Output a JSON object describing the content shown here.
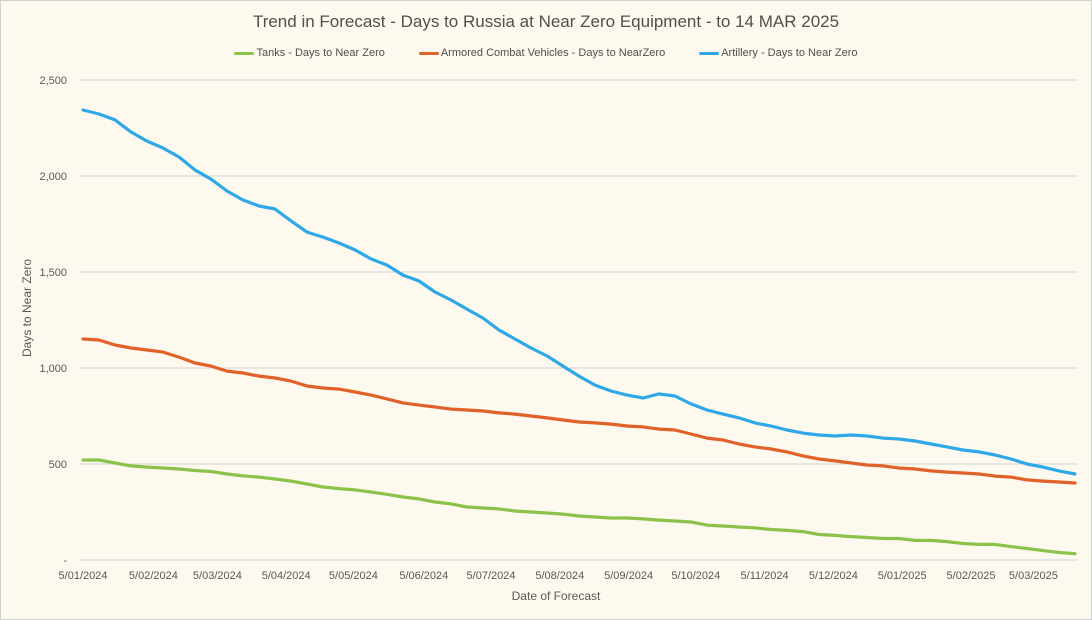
{
  "chart_data": {
    "type": "line",
    "title": "Trend in Forecast - Days to Russia at Near Zero Equipment - to 14 MAR 2025",
    "xlabel": "Date of Forecast",
    "ylabel": "Days to Near Zero",
    "ylim": [
      0,
      2500
    ],
    "yticks": [
      0,
      500,
      1000,
      1500,
      2000,
      2500
    ],
    "ytick_labels": [
      "-",
      "500",
      "1,000",
      "1,500",
      "2,000",
      "2,500"
    ],
    "xtick_labels": [
      "5/01/2024",
      "5/02/2024",
      "5/03/2024",
      "5/04/2024",
      "5/05/2024",
      "5/06/2024",
      "5/07/2024",
      "5/08/2024",
      "5/09/2024",
      "5/10/2024",
      "5/11/2024",
      "5/12/2024",
      "5/01/2025",
      "5/02/2025",
      "5/03/2025"
    ],
    "xtick_positions": [
      0,
      4.4,
      8.4,
      12.7,
      16.9,
      21.3,
      25.5,
      29.8,
      34.1,
      38.3,
      42.6,
      46.9,
      51.2,
      55.5,
      59.4
    ],
    "grid": true,
    "legend_position": "top",
    "n_points": 63,
    "series": [
      {
        "name": "Tanks - Days to Near Zero",
        "color": "#8bc34a",
        "values": [
          521,
          521,
          505,
          490,
          484,
          479,
          474,
          466,
          461,
          448,
          438,
          432,
          422,
          411,
          396,
          380,
          372,
          365,
          354,
          342,
          328,
          318,
          302,
          292,
          276,
          271,
          266,
          255,
          250,
          245,
          239,
          229,
          224,
          219,
          219,
          214,
          208,
          203,
          198,
          182,
          177,
          172,
          167,
          159,
          154,
          148,
          133,
          128,
          122,
          117,
          112,
          112,
          102,
          102,
          96,
          86,
          81,
          81,
          70,
          60,
          49,
          39,
          33
        ]
      },
      {
        "name": "Armored Combat Vehicles - Days to NearZero",
        "color": "#e0622a",
        "values": [
          1151,
          1146,
          1120,
          1104,
          1094,
          1083,
          1057,
          1026,
          1010,
          984,
          974,
          958,
          948,
          932,
          906,
          896,
          890,
          875,
          859,
          839,
          818,
          807,
          797,
          786,
          781,
          776,
          766,
          760,
          750,
          740,
          729,
          719,
          714,
          708,
          698,
          693,
          682,
          677,
          656,
          635,
          625,
          604,
          589,
          578,
          563,
          542,
          526,
          516,
          505,
          495,
          490,
          479,
          474,
          464,
          458,
          453,
          448,
          437,
          432,
          417,
          411,
          406,
          401
        ]
      },
      {
        "name": "Artillery - Days to Near Zero",
        "color": "#2ea8e6",
        "values": [
          2344,
          2323,
          2292,
          2229,
          2182,
          2146,
          2099,
          2031,
          1984,
          1922,
          1875,
          1844,
          1828,
          1766,
          1708,
          1682,
          1651,
          1615,
          1568,
          1536,
          1484,
          1453,
          1396,
          1354,
          1307,
          1260,
          1198,
          1151,
          1104,
          1063,
          1010,
          958,
          911,
          880,
          859,
          844,
          865,
          854,
          813,
          781,
          760,
          740,
          714,
          698,
          677,
          661,
          651,
          646,
          651,
          646,
          635,
          630,
          620,
          604,
          589,
          573,
          563,
          547,
          526,
          500,
          484,
          464,
          448
        ]
      }
    ]
  }
}
